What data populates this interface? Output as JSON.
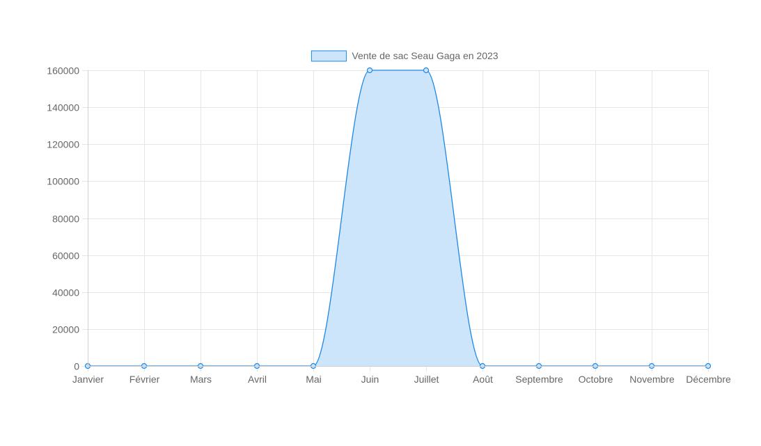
{
  "chart_data": {
    "type": "area",
    "categories": [
      "Janvier",
      "Février",
      "Mars",
      "Avril",
      "Mai",
      "Juin",
      "Juillet",
      "Août",
      "Septembre",
      "Octobre",
      "Novembre",
      "Décembre"
    ],
    "series": [
      {
        "name": "Vente de sac Seau Gaga en 2023",
        "values": [
          0,
          0,
          0,
          0,
          0,
          160000,
          160000,
          0,
          0,
          0,
          0,
          0
        ],
        "line_color": "#1e88e5",
        "fill_color": "#cce5fb"
      }
    ],
    "ylim": [
      0,
      160000
    ],
    "yticks": [
      0,
      20000,
      40000,
      60000,
      80000,
      100000,
      120000,
      140000,
      160000
    ],
    "grid": true,
    "legend": "top-center",
    "title": "",
    "xlabel": "",
    "ylabel": ""
  }
}
